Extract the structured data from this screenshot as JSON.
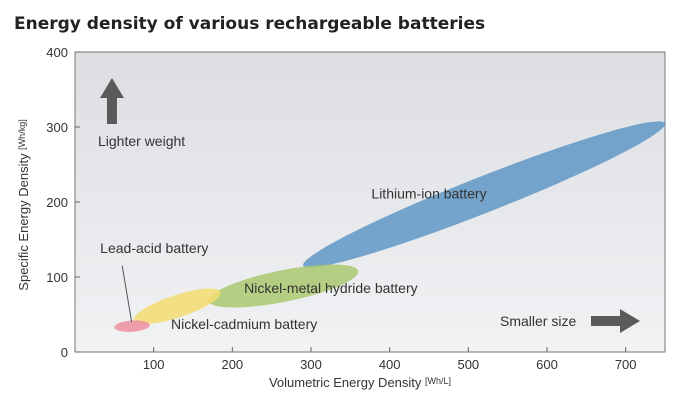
{
  "chart_data": {
    "type": "scatter",
    "title": "Energy density of various rechargeable batteries",
    "xlabel": "Volumetric Energy Density",
    "xlabel_unit": "[Wh/L]",
    "ylabel": "Specific Energy Density",
    "ylabel_unit": "[Wh/kg]",
    "xlim": [
      0,
      750
    ],
    "ylim": [
      0,
      400
    ],
    "xticks": [
      100,
      200,
      300,
      400,
      500,
      600,
      700
    ],
    "yticks": [
      0,
      100,
      200,
      300,
      400
    ],
    "series": [
      {
        "name": "Lithium-ion battery",
        "color": "#5f97c6",
        "start": {
          "x": 290,
          "y": 115
        },
        "end": {
          "x": 750,
          "y": 305
        },
        "width_y": 48
      },
      {
        "name": "Nickel-metal hydride battery",
        "color": "#a9c870",
        "start": {
          "x": 170,
          "y": 68
        },
        "end": {
          "x": 360,
          "y": 108
        },
        "width_y": 42
      },
      {
        "name": "Nickel-cadmium battery",
        "color": "#f3dd72",
        "start": {
          "x": 75,
          "y": 42
        },
        "end": {
          "x": 185,
          "y": 80
        },
        "width_y": 30
      },
      {
        "name": "Lead-acid battery",
        "color": "#ec8f9e",
        "start": {
          "x": 50,
          "y": 33
        },
        "end": {
          "x": 95,
          "y": 36
        },
        "width_y": 15
      }
    ],
    "annotations": {
      "lighter_weight": "Lighter weight",
      "smaller_size": "Smaller size"
    }
  }
}
